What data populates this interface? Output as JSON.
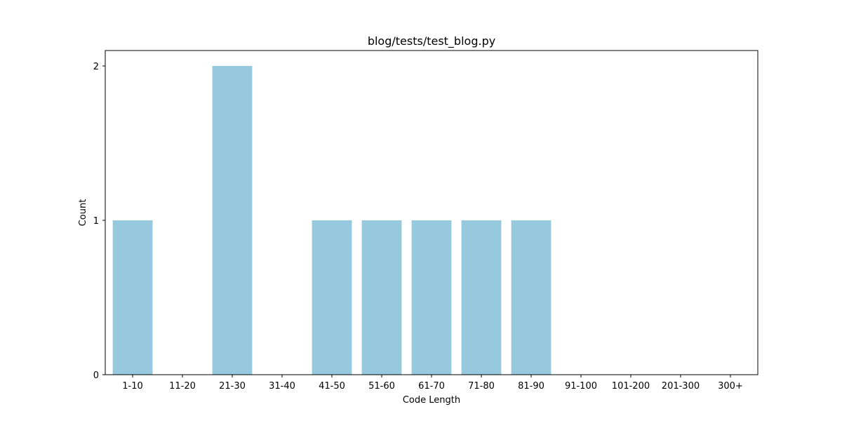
{
  "chart_data": {
    "type": "bar",
    "title": "blog/tests/test_blog.py",
    "xlabel": "Code Length",
    "ylabel": "Count",
    "categories": [
      "1-10",
      "11-20",
      "21-30",
      "31-40",
      "41-50",
      "51-60",
      "61-70",
      "71-80",
      "81-90",
      "91-100",
      "101-200",
      "201-300",
      "300+"
    ],
    "values": [
      1,
      0,
      2,
      0,
      1,
      1,
      1,
      1,
      1,
      0,
      0,
      0,
      0
    ],
    "ylim": [
      0,
      2.1
    ],
    "yticks": [
      0,
      1,
      2
    ],
    "grid": false,
    "bar_color": "#96c9de"
  }
}
